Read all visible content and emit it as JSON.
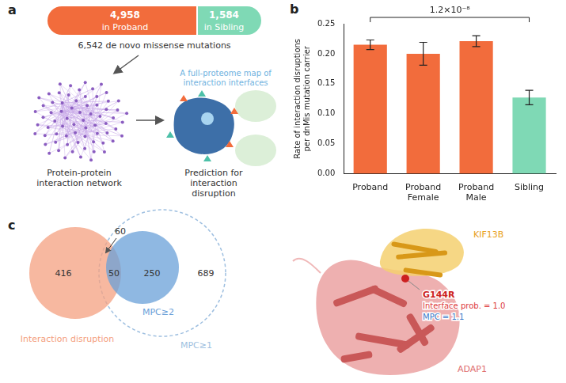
{
  "panel_a": {
    "letter": "a",
    "proband": {
      "count": "4,958",
      "label": "in Proband",
      "color": "#f26c3c"
    },
    "sibling": {
      "count": "1,584",
      "label": "in Sibling",
      "color": "#7fd9b5"
    },
    "total": "6,542 de novo missense mutations",
    "network_label": "Protein-protein interaction network",
    "map_label": "A full-proteome map of interaction interfaces",
    "prediction_label": "Prediction for interaction disruption"
  },
  "panel_b": {
    "letter": "b"
  },
  "chart_data": {
    "type": "bar",
    "y_label": "Rate of interaction disruptions per dnMis mutation carrier",
    "categories": [
      "Proband",
      "Proband Female",
      "Proband Male",
      "Sibling"
    ],
    "values": [
      0.215,
      0.2,
      0.221,
      0.127
    ],
    "errors": [
      0.008,
      0.019,
      0.009,
      0.012
    ],
    "colors": [
      "#f26c3c",
      "#f26c3c",
      "#f26c3c",
      "#7fd9b5"
    ],
    "ylim": [
      0,
      0.25
    ],
    "yticks": [
      {
        "value": 0,
        "label": "0.00"
      },
      {
        "value": 0.05,
        "label": "0.05"
      },
      {
        "value": 0.1,
        "label": "0.10"
      },
      {
        "value": 0.15,
        "label": "0.15"
      },
      {
        "value": 0.2,
        "label": "0.20"
      },
      {
        "value": 0.25,
        "label": "0.25"
      }
    ],
    "grid": false,
    "annotations": [
      {
        "text": "1.2×10⁻⁸",
        "from": "Proband",
        "to": "Sibling"
      }
    ]
  },
  "panel_c": {
    "letter": "c",
    "venn": {
      "sets": [
        {
          "name": "Interaction disruption",
          "color": "#f4a080"
        },
        {
          "name": "MPC≥2",
          "color": "#6aa0d8"
        },
        {
          "name": "MPC≥1",
          "color": "#9ebfe0"
        }
      ],
      "counts": {
        "disruption_only": "416",
        "disruption_and_mpc2": "50",
        "disruption_and_mpc1_only": "60",
        "mpc2_only": "250",
        "mpc1_only": "689"
      }
    },
    "structure": {
      "partner": {
        "name": "KIF13B",
        "color": "#e8a020"
      },
      "protein": {
        "name": "ADAP1",
        "color": "#e07070"
      },
      "mutation": "G144R",
      "interface_prob": "Interface prob. = 1.0",
      "mpc": "MPC = 1.1"
    }
  }
}
